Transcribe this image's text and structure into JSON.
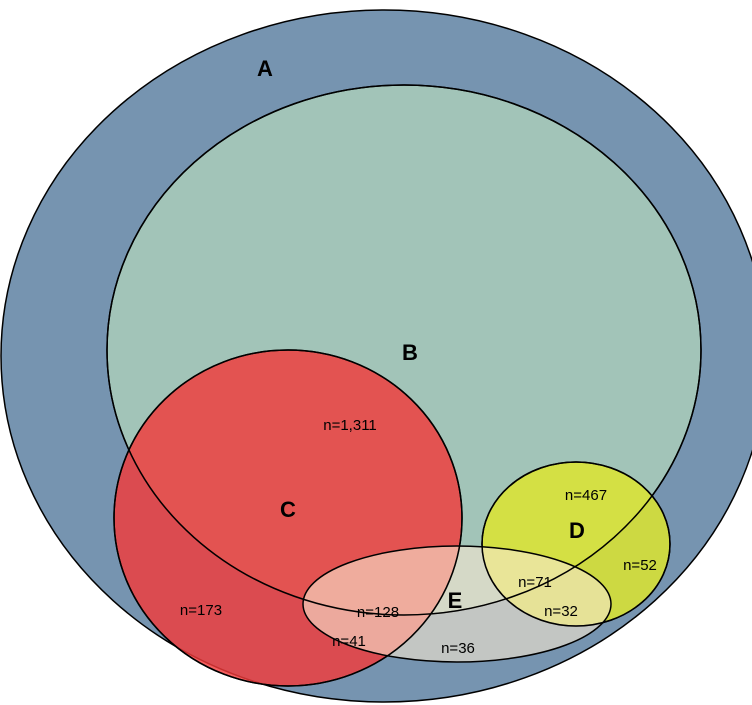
{
  "sets": [
    {
      "id": "A",
      "label": "A",
      "color": "#7694b0"
    },
    {
      "id": "B",
      "label": "B",
      "color": "#a2c4b8"
    },
    {
      "id": "C",
      "label": "C",
      "color": "#f04040"
    },
    {
      "id": "D",
      "label": "D",
      "color": "#dde83a"
    },
    {
      "id": "E",
      "label": "E",
      "color": "#f5e6c8"
    }
  ],
  "counts": {
    "b_only": "n=1,311",
    "c_a_only": "n=173",
    "d_b_only": "n=467",
    "d_a_only": "n=52",
    "c_b_e": "n=128",
    "c_a_e": "n=41",
    "e_a_only": "n=36",
    "d_b_e": "n=71",
    "d_a_e": "n=32"
  }
}
